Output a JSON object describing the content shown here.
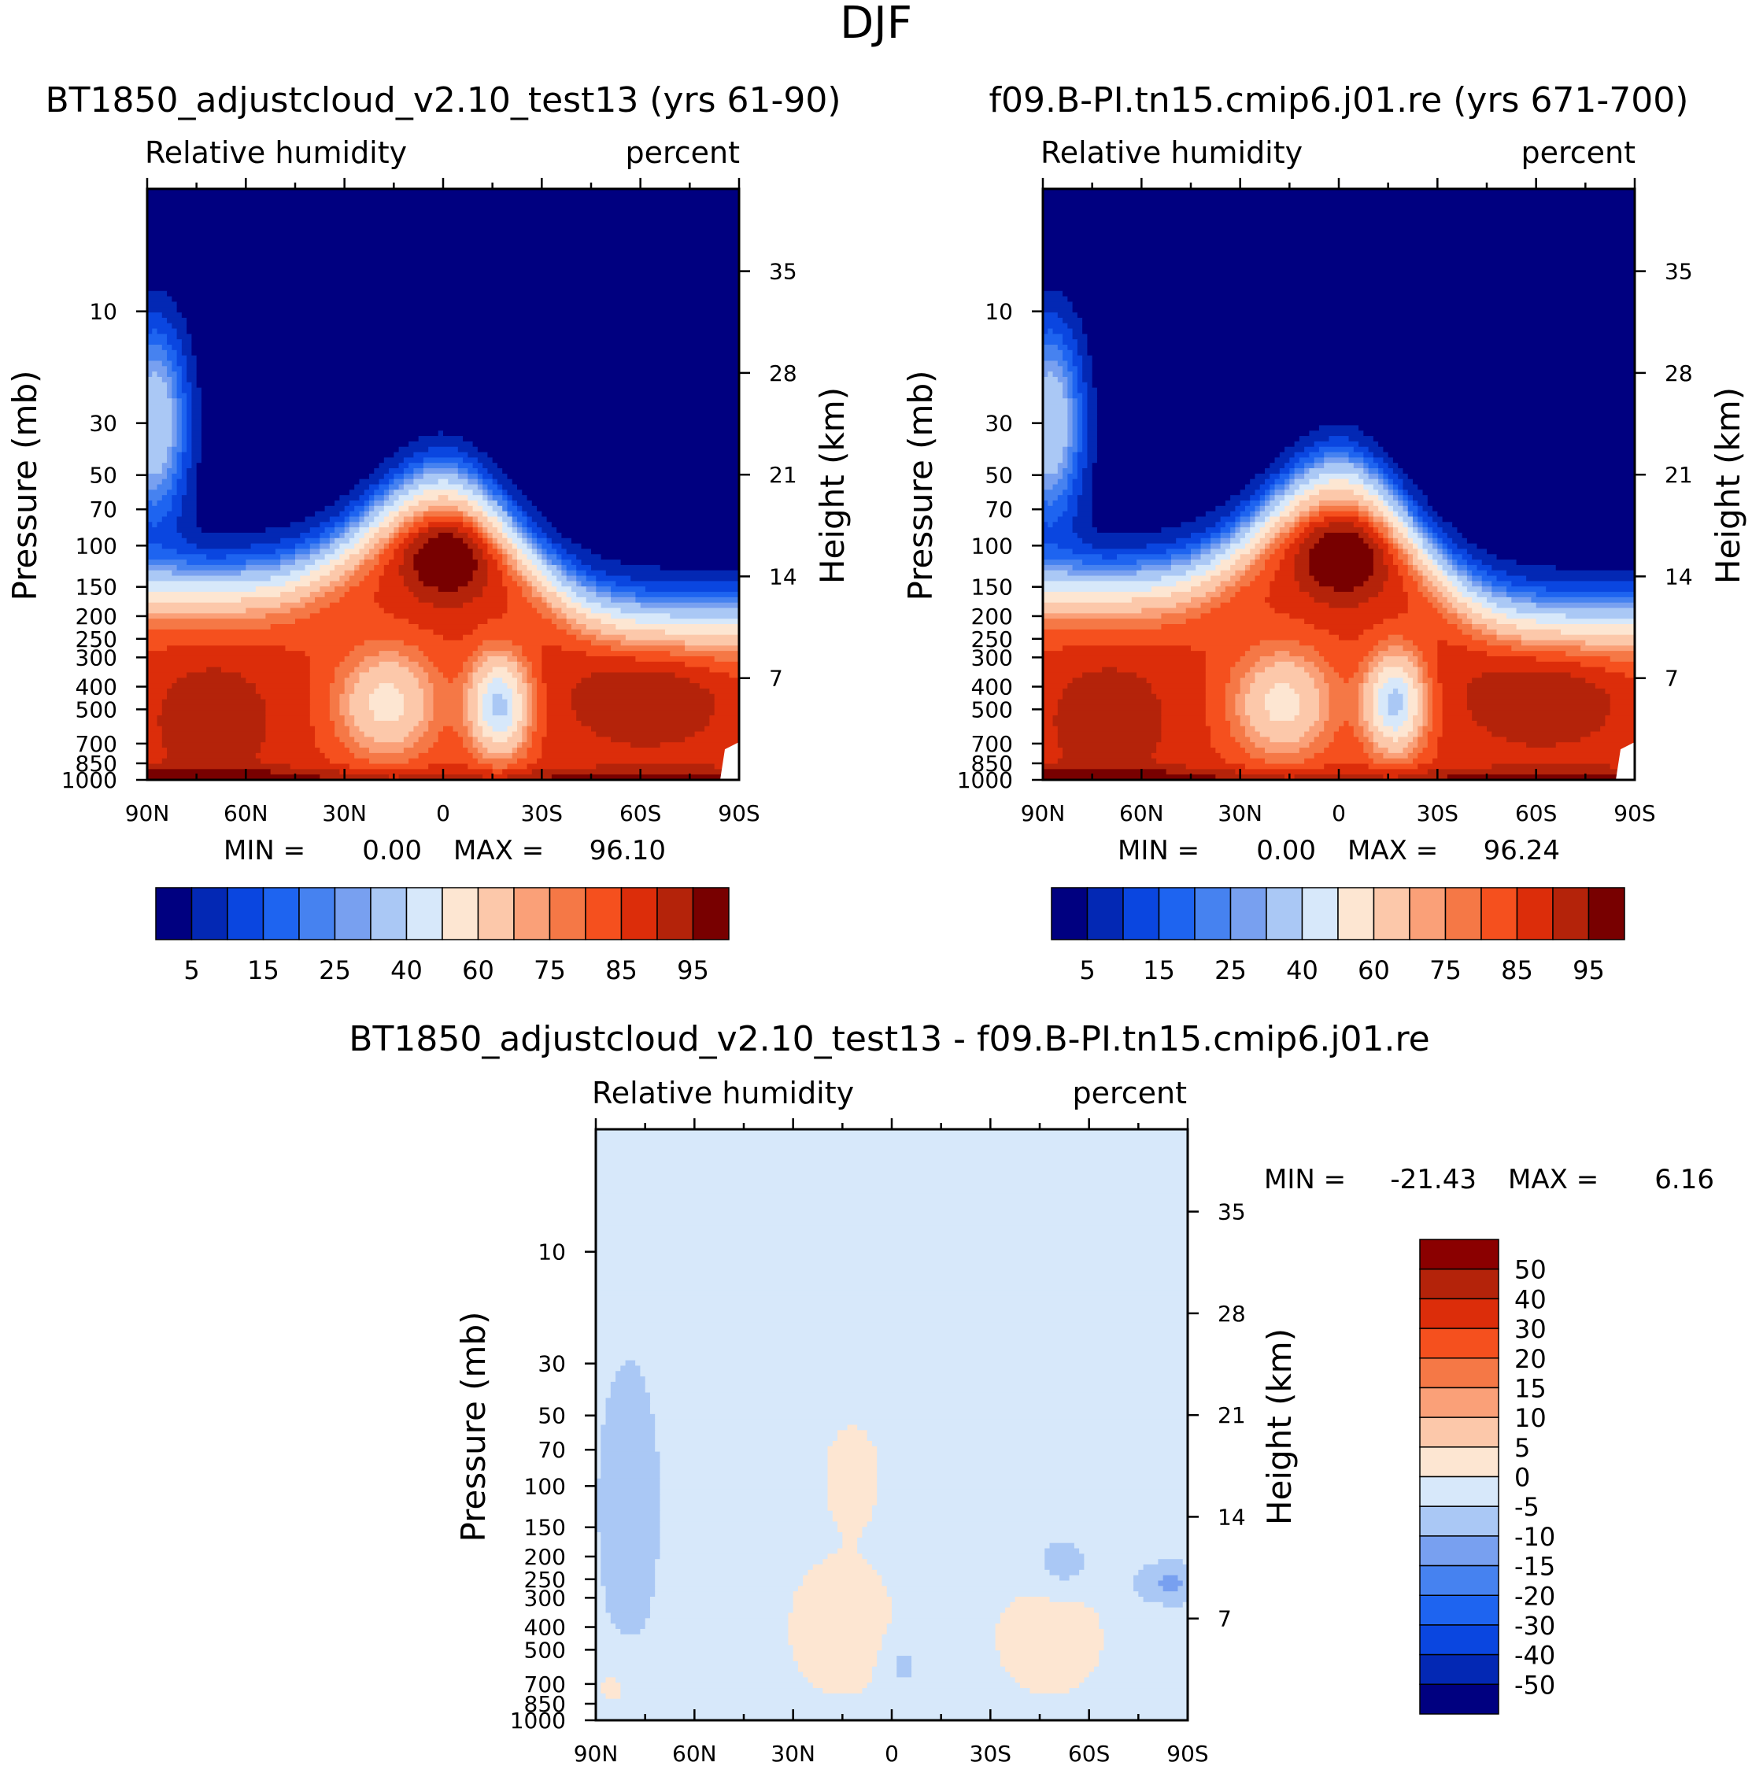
{
  "figure_title": "DJF",
  "colors": {
    "abs_levels": [
      "#000080",
      "#0328b4",
      "#0a46e0",
      "#1e64f0",
      "#4682f0",
      "#78a0f0",
      "#aac8f5",
      "#d7e8fa",
      "#fde6d2",
      "#fcc8aa",
      "#faa078",
      "#f57846",
      "#f5501e",
      "#dc2d0a",
      "#b4230a",
      "#780000"
    ],
    "diff_levels": [
      "#000080",
      "#0328b4",
      "#0a46e0",
      "#1e64f0",
      "#4682f0",
      "#78a0f0",
      "#aac8f5",
      "#d7e8fa",
      "#fde6d2",
      "#fcc8aa",
      "#faa078",
      "#f57846",
      "#f5501e",
      "#dc2d0a",
      "#b4230a",
      "#8b0000"
    ]
  },
  "chart_data": [
    {
      "type": "heatmap",
      "title": "BT1850_adjustcloud_v2.10_test13 (yrs 61-90)",
      "left_string": "Relative humidity",
      "right_string": "percent",
      "ylabel": "Pressure (mb)",
      "ylabel_right": "Height (km)",
      "x_ticks": [
        "90N",
        "60N",
        "30N",
        "0",
        "30S",
        "60S",
        "90S"
      ],
      "y_ticks": [
        10,
        30,
        50,
        70,
        100,
        150,
        200,
        250,
        300,
        400,
        500,
        700,
        850,
        1000
      ],
      "y_right_ticks": [
        35,
        28,
        21,
        14,
        7
      ],
      "ylim": [
        1000,
        3
      ],
      "y_scale": "log",
      "min_label": "MIN =",
      "min_value": "0.00",
      "max_label": "MAX =",
      "max_value": "96.10",
      "colorbar_levels": [
        5,
        10,
        15,
        20,
        25,
        30,
        40,
        50,
        60,
        70,
        75,
        80,
        85,
        90,
        95
      ],
      "colorbar_labels": [
        "5",
        "15",
        "25",
        "40",
        "60",
        "75",
        "85",
        "95"
      ],
      "fields": {
        "trop_peak_hPa": 110,
        "tropical_top_hPa": 55,
        "min_lat": -17,
        "min_hPa": 480,
        "secondary_min_lat": 17,
        "secondary_min_hPa": 470,
        "high_lat_wet_hPa": 30
      }
    },
    {
      "type": "heatmap",
      "title": "f09.B-PI.tn15.cmip6.j01.re (yrs 671-700)",
      "left_string": "Relative humidity",
      "right_string": "percent",
      "ylabel": "Pressure (mb)",
      "ylabel_right": "Height (km)",
      "x_ticks": [
        "90N",
        "60N",
        "30N",
        "0",
        "30S",
        "60S",
        "90S"
      ],
      "y_ticks": [
        10,
        30,
        50,
        70,
        100,
        150,
        200,
        250,
        300,
        400,
        500,
        700,
        850,
        1000
      ],
      "y_right_ticks": [
        35,
        28,
        21,
        14,
        7
      ],
      "ylim": [
        1000,
        3
      ],
      "y_scale": "log",
      "min_label": "MIN =",
      "min_value": "0.00",
      "max_label": "MAX =",
      "max_value": "96.24",
      "colorbar_levels": [
        5,
        10,
        15,
        20,
        25,
        30,
        40,
        50,
        60,
        70,
        75,
        80,
        85,
        90,
        95
      ],
      "colorbar_labels": [
        "5",
        "15",
        "25",
        "40",
        "60",
        "75",
        "85",
        "95"
      ],
      "fields": {
        "trop_peak_hPa": 110,
        "tropical_top_hPa": 50,
        "min_lat": -17,
        "min_hPa": 470,
        "secondary_min_lat": 17,
        "secondary_min_hPa": 470,
        "high_lat_wet_hPa": 30
      }
    },
    {
      "type": "heatmap",
      "title": "BT1850_adjustcloud_v2.10_test13 - f09.B-PI.tn15.cmip6.j01.re",
      "left_string": "Relative humidity",
      "right_string": "percent",
      "ylabel": "Pressure (mb)",
      "ylabel_right": "Height (km)",
      "x_ticks": [
        "90N",
        "60N",
        "30N",
        "0",
        "30S",
        "60S",
        "90S"
      ],
      "y_ticks": [
        10,
        30,
        50,
        70,
        100,
        150,
        200,
        250,
        300,
        400,
        500,
        700,
        850,
        1000
      ],
      "y_right_ticks": [
        35,
        28,
        21,
        14,
        7
      ],
      "ylim": [
        1000,
        3
      ],
      "y_scale": "log",
      "min_label": "MIN =",
      "min_value": "-21.43",
      "max_label": "MAX =",
      "max_value": "6.16",
      "colorbar_levels": [
        -50,
        -40,
        -30,
        -20,
        -15,
        -10,
        -5,
        0,
        5,
        10,
        15,
        20,
        30,
        40,
        50
      ],
      "colorbar_labels": [
        "50",
        "40",
        "30",
        "20",
        "15",
        "10",
        "5",
        "0",
        "-5",
        "-10",
        "-15",
        "-20",
        "-30",
        "-40",
        "-50"
      ]
    }
  ]
}
